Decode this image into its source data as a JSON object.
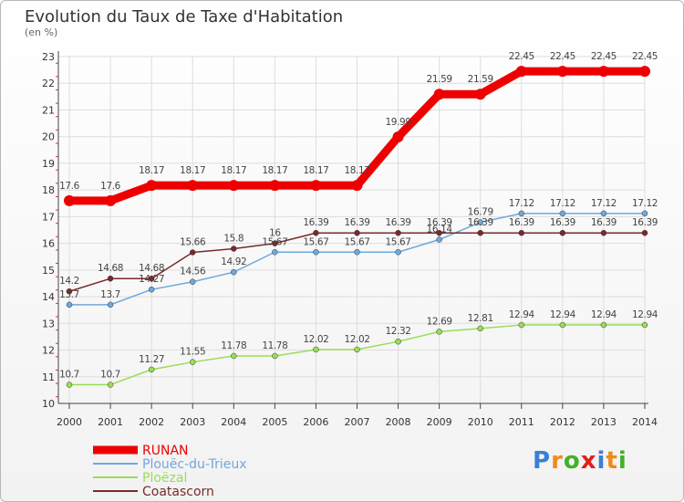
{
  "chart_data": {
    "type": "line",
    "title": "Evolution du Taux de Taxe d'Habitation",
    "subtitle": "(en %)",
    "xlabel": "",
    "ylabel": "",
    "x": [
      "2000",
      "2001",
      "2002",
      "2003",
      "2004",
      "2005",
      "2006",
      "2007",
      "2008",
      "2009",
      "2010",
      "2011",
      "2012",
      "2013",
      "2014"
    ],
    "y_ticks": [
      "10",
      "11",
      "12",
      "13",
      "14",
      "15",
      "16",
      "17",
      "18",
      "19",
      "20",
      "21",
      "22",
      "23"
    ],
    "ylim": [
      10,
      23
    ],
    "grid": true,
    "legend_position": "bottom-left",
    "series": [
      {
        "name": "RUNAN",
        "color": "#ee0000",
        "emphasis": true,
        "values": [
          17.6,
          17.6,
          18.17,
          18.17,
          18.17,
          18.17,
          18.17,
          18.17,
          19.99,
          21.59,
          21.59,
          22.45,
          22.45,
          22.45,
          22.45
        ],
        "labels": [
          "17.6",
          "17.6",
          "18.17",
          "18.17",
          "18.17",
          "18.17",
          "18.17",
          "18.17",
          "19.99",
          "21.59",
          "21.59",
          "22.45",
          "22.45",
          "22.45",
          "22.45"
        ]
      },
      {
        "name": "Plouëc-du-Trieux",
        "color": "#6fa8dc",
        "values": [
          13.7,
          13.7,
          14.27,
          14.56,
          14.92,
          15.67,
          15.67,
          15.67,
          15.67,
          16.14,
          16.79,
          17.12,
          17.12,
          17.12,
          17.12
        ],
        "labels": [
          "13.7",
          "13.7",
          "14.27",
          "14.56",
          "14.92",
          "15.67",
          "15.67",
          "15.67",
          "15.67",
          "16.14",
          "16.79",
          "17.12",
          "17.12",
          "17.12",
          "17.12"
        ]
      },
      {
        "name": "Ploëzal",
        "color": "#99dd55",
        "values": [
          10.7,
          10.7,
          11.27,
          11.55,
          11.78,
          11.78,
          12.02,
          12.02,
          12.32,
          12.69,
          12.81,
          12.94,
          12.94,
          12.94,
          12.94
        ],
        "labels": [
          "10.7",
          "10.7",
          "11.27",
          "11.55",
          "11.78",
          "11.78",
          "12.02",
          "12.02",
          "12.32",
          "12.69",
          "12.81",
          "12.94",
          "12.94",
          "12.94",
          "12.94"
        ]
      },
      {
        "name": "Coatascorn",
        "color": "#7a2a2a",
        "values": [
          14.2,
          14.68,
          14.68,
          15.66,
          15.8,
          16,
          16.39,
          16.39,
          16.39,
          16.39,
          16.39,
          16.39,
          16.39,
          16.39,
          16.39
        ],
        "labels": [
          "14.2",
          "14.68",
          "14.68",
          "15.66",
          "15.8",
          "16",
          "16.39",
          "16.39",
          "16.39",
          "16.39",
          "16.39",
          "16.39",
          "16.39",
          "16.39",
          "16.39"
        ]
      }
    ]
  },
  "watermark": {
    "letters": [
      "P",
      "r",
      "o",
      "x",
      "i",
      "t",
      "i"
    ],
    "colors": [
      "#3a7fd5",
      "#f08a1c",
      "#43b02a",
      "#e0201b",
      "#3a7fd5",
      "#f08a1c",
      "#43b02a"
    ]
  }
}
